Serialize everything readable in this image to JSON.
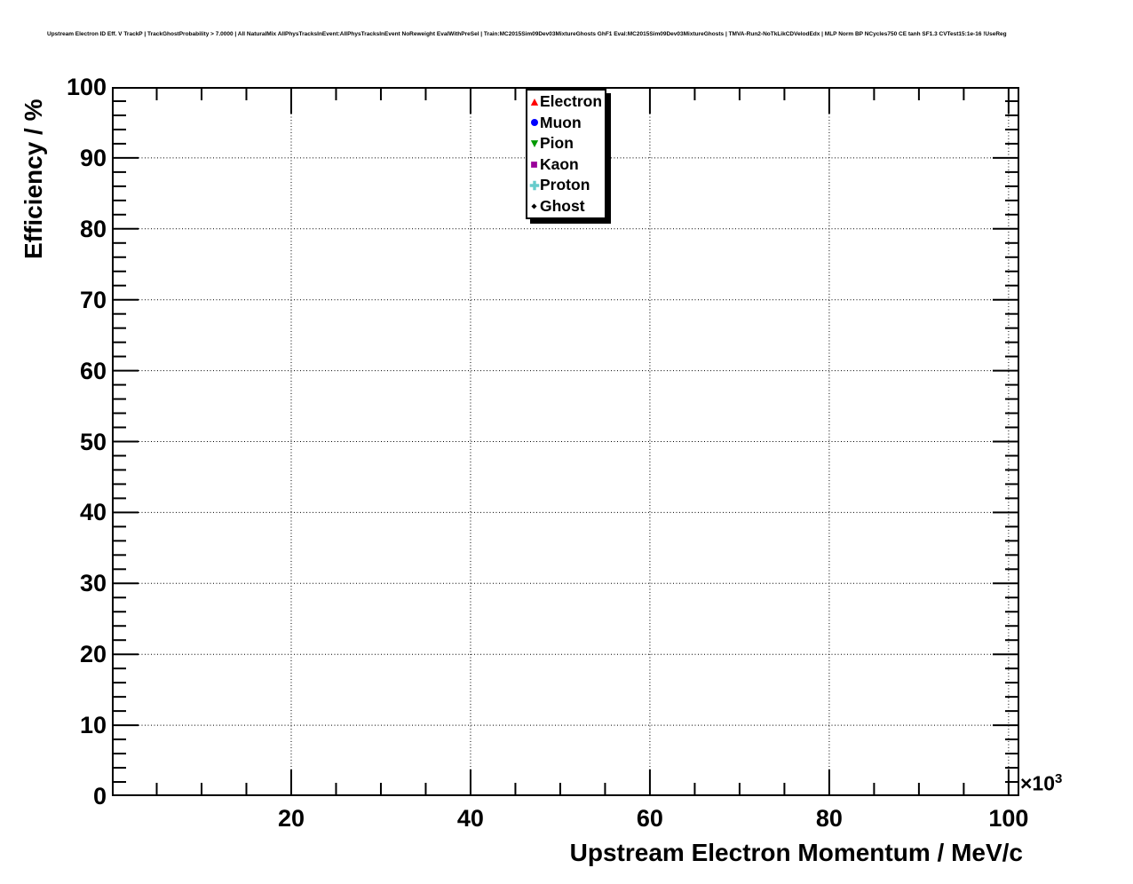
{
  "chart_data": {
    "type": "scatter",
    "title": "Upstream Electron ID Eff. V TrackP | TrackGhostProbability > 7.0000 | All NaturalMix AllPhysTracksInEvent:AllPhysTracksInEvent NoReweight EvalWithPreSel | Train:MC2015Sim09Dev03MixtureGhosts GhF1 Eval:MC2015Sim09Dev03MixtureGhosts | TMVA-Run2-NoTkLikCDVelodEdx | MLP Norm BP NCycles750 CE tanh SF1.3 CVTest15:1e-16 !UseReg",
    "xlabel": "Upstream Electron Momentum / MeV/c",
    "ylabel": "Efficiency / %",
    "x_scale": {
      "prefix": "×10",
      "exponent": "3"
    },
    "xlim": [
      0,
      101.2
    ],
    "ylim": [
      0,
      100
    ],
    "x_major_ticks": [
      20,
      40,
      60,
      80,
      100
    ],
    "x_minor_step": 5,
    "y_major_ticks": [
      0,
      10,
      20,
      30,
      40,
      50,
      60,
      70,
      80,
      90,
      100
    ],
    "y_minor_step": 2,
    "grid": "dotted",
    "legend_position": "top-center",
    "series": [
      {
        "name": "Electron",
        "marker": "triangle-up",
        "color": "#ff0000",
        "marker_size_px": 10,
        "points": []
      },
      {
        "name": "Muon",
        "marker": "circle",
        "color": "#0000ff",
        "marker_size_px": 10,
        "points": []
      },
      {
        "name": "Pion",
        "marker": "triangle-down",
        "color": "#009900",
        "marker_size_px": 10,
        "points": []
      },
      {
        "name": "Kaon",
        "marker": "square",
        "color": "#990099",
        "marker_size_px": 9,
        "points": []
      },
      {
        "name": "Proton",
        "marker": "cross",
        "color": "#66cccc",
        "marker_size_px": 12,
        "points": []
      },
      {
        "name": "Ghost",
        "marker": "diamond",
        "color": "#000000",
        "marker_size_px": 7,
        "points": []
      }
    ]
  }
}
